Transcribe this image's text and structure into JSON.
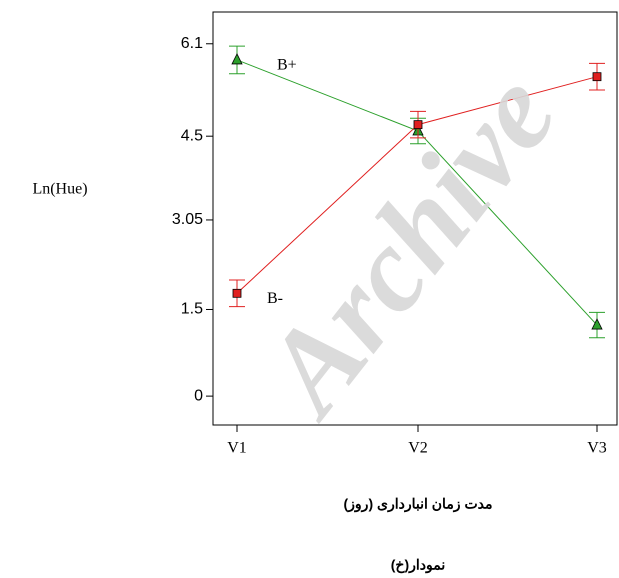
{
  "chart_data": {
    "type": "line",
    "x_label": "مدت زمان انبارداری (روز)",
    "y_label": "Ln(Hue)",
    "caption": "نمودار(خ)",
    "watermark": "Archive",
    "categories": [
      "V1",
      "V2",
      "V3"
    ],
    "series": [
      {
        "name": "B+",
        "color": "#2ca02c",
        "marker": "triangle",
        "values": [
          5.82,
          4.59,
          1.23
        ],
        "errors": [
          0.24,
          0.22,
          0.22
        ]
      },
      {
        "name": "B-",
        "color": "#e02020",
        "marker": "square",
        "values": [
          1.78,
          4.7,
          5.53
        ],
        "errors": [
          0.23,
          0.23,
          0.23
        ]
      }
    ],
    "ylim": [
      -0.5,
      6.65
    ],
    "yticks": [
      0,
      1.5,
      3.05,
      4.5,
      6.1
    ],
    "grid": false
  }
}
